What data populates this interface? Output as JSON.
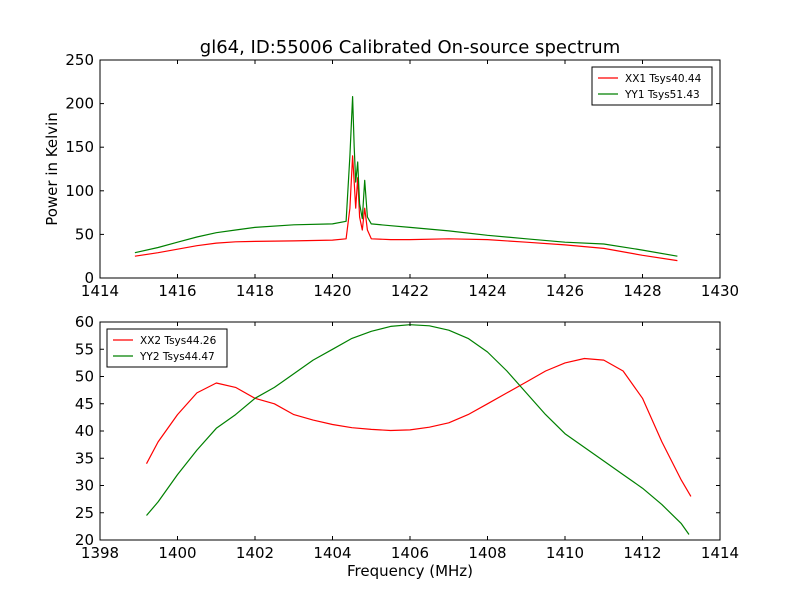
{
  "title": "gl64, ID:55006 Calibrated On-source spectrum",
  "chart_data": [
    {
      "type": "line",
      "ylabel": "Power in Kelvin",
      "xlabel": "",
      "xlim": [
        1414,
        1430
      ],
      "ylim": [
        0,
        250
      ],
      "xticks": [
        "1414",
        "1416",
        "1418",
        "1420",
        "1422",
        "1424",
        "1426",
        "1428",
        "1430"
      ],
      "yticks": [
        "0",
        "50",
        "100",
        "150",
        "200",
        "250"
      ],
      "legend_position": "top-right",
      "series": [
        {
          "name": "XX1 Tsys40.44",
          "color": "#ff0000",
          "points": [
            [
              1414.9,
              25
            ],
            [
              1415.5,
              29
            ],
            [
              1416,
              33
            ],
            [
              1416.5,
              37
            ],
            [
              1417,
              40
            ],
            [
              1417.5,
              41.5
            ],
            [
              1418,
              42
            ],
            [
              1419,
              42.5
            ],
            [
              1420,
              43.5
            ],
            [
              1420.35,
              45
            ],
            [
              1420.45,
              80
            ],
            [
              1420.52,
              140
            ],
            [
              1420.56,
              110
            ],
            [
              1420.6,
              80
            ],
            [
              1420.65,
              115
            ],
            [
              1420.7,
              70
            ],
            [
              1420.77,
              55
            ],
            [
              1420.83,
              80
            ],
            [
              1420.9,
              55
            ],
            [
              1421,
              45
            ],
            [
              1421.5,
              44
            ],
            [
              1422,
              44
            ],
            [
              1423,
              45
            ],
            [
              1424,
              44
            ],
            [
              1425,
              41
            ],
            [
              1426,
              38
            ],
            [
              1427,
              34
            ],
            [
              1428,
              26
            ],
            [
              1428.9,
              20
            ]
          ]
        },
        {
          "name": "YY1 Tsys51.43",
          "color": "#008000",
          "points": [
            [
              1414.9,
              29
            ],
            [
              1415.5,
              35
            ],
            [
              1416,
              41
            ],
            [
              1416.5,
              47
            ],
            [
              1417,
              52
            ],
            [
              1417.5,
              55
            ],
            [
              1418,
              58
            ],
            [
              1419,
              61
            ],
            [
              1420,
              62
            ],
            [
              1420.35,
              65
            ],
            [
              1420.45,
              140
            ],
            [
              1420.52,
              208
            ],
            [
              1420.56,
              150
            ],
            [
              1420.6,
              110
            ],
            [
              1420.65,
              133
            ],
            [
              1420.7,
              85
            ],
            [
              1420.77,
              68
            ],
            [
              1420.83,
              112
            ],
            [
              1420.9,
              70
            ],
            [
              1421,
              62
            ],
            [
              1421.5,
              60
            ],
            [
              1422,
              58
            ],
            [
              1423,
              54
            ],
            [
              1424,
              49
            ],
            [
              1425,
              45
            ],
            [
              1426,
              41
            ],
            [
              1427,
              39
            ],
            [
              1428,
              32
            ],
            [
              1428.9,
              25
            ]
          ]
        }
      ]
    },
    {
      "type": "line",
      "xlabel": "Frequency (MHz)",
      "ylabel": "",
      "xlim": [
        1398,
        1414
      ],
      "ylim": [
        20,
        60
      ],
      "xticks": [
        "1398",
        "1400",
        "1402",
        "1404",
        "1406",
        "1408",
        "1410",
        "1412",
        "1414"
      ],
      "yticks": [
        "20",
        "25",
        "30",
        "35",
        "40",
        "45",
        "50",
        "55",
        "60"
      ],
      "legend_position": "top-left",
      "series": [
        {
          "name": "XX2 Tsys44.26",
          "color": "#ff0000",
          "points": [
            [
              1399.2,
              34
            ],
            [
              1399.5,
              38
            ],
            [
              1400,
              43
            ],
            [
              1400.5,
              47
            ],
            [
              1401,
              48.8
            ],
            [
              1401.5,
              48
            ],
            [
              1402,
              46
            ],
            [
              1402.5,
              45
            ],
            [
              1403,
              43
            ],
            [
              1403.5,
              42
            ],
            [
              1404,
              41.2
            ],
            [
              1404.5,
              40.6
            ],
            [
              1405,
              40.3
            ],
            [
              1405.5,
              40.1
            ],
            [
              1406,
              40.2
            ],
            [
              1406.5,
              40.7
            ],
            [
              1407,
              41.5
            ],
            [
              1407.5,
              43
            ],
            [
              1408,
              45
            ],
            [
              1408.5,
              47
            ],
            [
              1409,
              49
            ],
            [
              1409.5,
              51
            ],
            [
              1410,
              52.5
            ],
            [
              1410.5,
              53.3
            ],
            [
              1411,
              53
            ],
            [
              1411.5,
              51
            ],
            [
              1412,
              46
            ],
            [
              1412.5,
              38
            ],
            [
              1413,
              31
            ],
            [
              1413.25,
              28
            ]
          ]
        },
        {
          "name": "YY2 Tsys44.47",
          "color": "#008000",
          "points": [
            [
              1399.2,
              24.5
            ],
            [
              1399.5,
              27
            ],
            [
              1400,
              32
            ],
            [
              1400.5,
              36.5
            ],
            [
              1401,
              40.5
            ],
            [
              1401.5,
              43
            ],
            [
              1402,
              46
            ],
            [
              1402.5,
              48
            ],
            [
              1403,
              50.5
            ],
            [
              1403.5,
              53
            ],
            [
              1404,
              55
            ],
            [
              1404.5,
              57
            ],
            [
              1405,
              58.3
            ],
            [
              1405.5,
              59.2
            ],
            [
              1406,
              59.5
            ],
            [
              1406.5,
              59.3
            ],
            [
              1407,
              58.5
            ],
            [
              1407.5,
              57
            ],
            [
              1408,
              54.5
            ],
            [
              1408.5,
              51
            ],
            [
              1409,
              47
            ],
            [
              1409.5,
              43
            ],
            [
              1410,
              39.5
            ],
            [
              1410.5,
              37
            ],
            [
              1411,
              34.5
            ],
            [
              1411.5,
              32
            ],
            [
              1412,
              29.5
            ],
            [
              1412.5,
              26.5
            ],
            [
              1413,
              23
            ],
            [
              1413.2,
              21
            ]
          ]
        }
      ]
    }
  ]
}
